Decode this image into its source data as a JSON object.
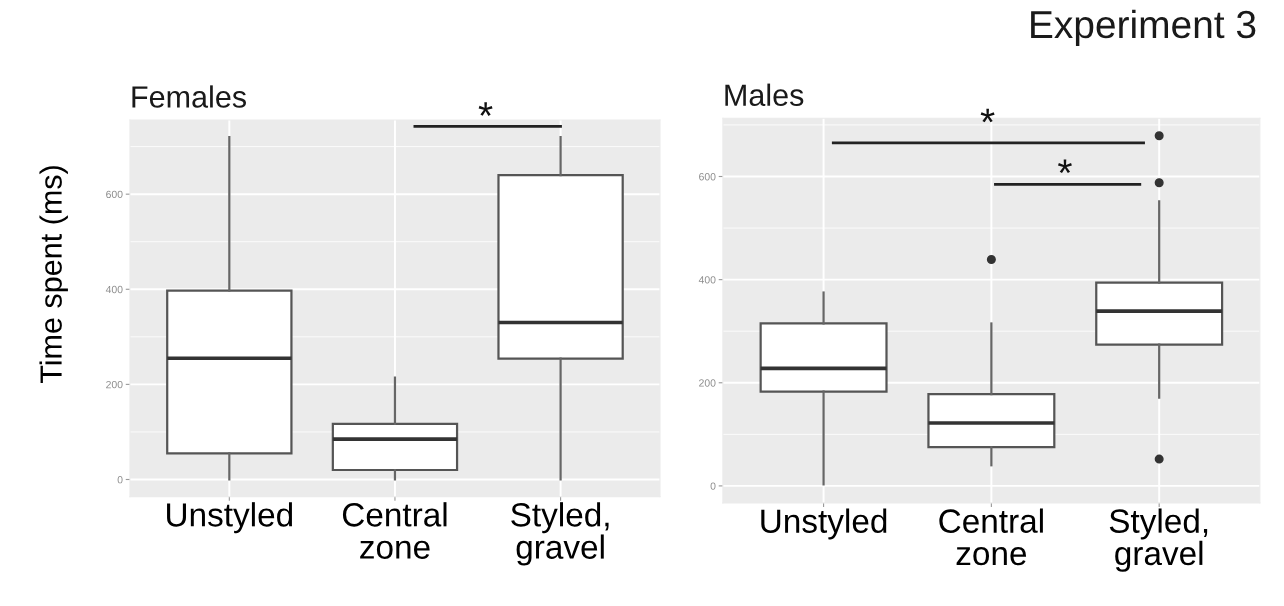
{
  "chart_data": [
    {
      "type": "box",
      "title": "Females",
      "ylabel": "Time spent (ms)",
      "categories": [
        "Unstyled",
        "Central\nzone",
        "Styled,\ngravel"
      ],
      "series": [
        {
          "color": "#ffffff",
          "boxes": [
            {
              "low": 0,
              "q1": 55,
              "median": 255,
              "q3": 397,
              "high": 720
            },
            {
              "low": 0,
              "q1": 20,
              "median": 85,
              "q3": 117,
              "high": 214
            },
            {
              "low": 0,
              "q1": 254,
              "median": 330,
              "q3": 640,
              "high": 720
            }
          ]
        }
      ],
      "ylim": [
        -36,
        756
      ],
      "yticks": [
        0,
        200,
        400,
        600
      ],
      "grid": true,
      "annotations": [
        "*"
      ]
    },
    {
      "type": "box",
      "title": "Males",
      "categories": [
        "Unstyled",
        "Central\nzone",
        "Styled,\ngravel"
      ],
      "series": [
        {
          "color": "#ffffff",
          "boxes": [
            {
              "low": 3,
              "q1": 183,
              "median": 228,
              "q3": 315,
              "high": 375
            },
            {
              "low": 40,
              "q1": 75,
              "median": 122,
              "q3": 178,
              "high": 315,
              "outliers": [
                439
              ]
            },
            {
              "low": 171,
              "q1": 274,
              "median": 339,
              "q3": 394,
              "high": 552,
              "outliers": [
                679,
                588,
                52
              ]
            }
          ]
        }
      ],
      "ylim": [
        -33,
        713
      ],
      "yticks": [
        0,
        200,
        400,
        600
      ],
      "grid": true,
      "annotations": [
        "Experiment 3",
        "*",
        "*"
      ]
    }
  ]
}
